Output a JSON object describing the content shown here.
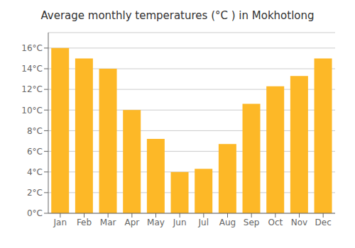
{
  "chart_data": {
    "type": "bar",
    "title": "Average monthly temperatures (°C ) in Mokhotlong",
    "categories": [
      "Jan",
      "Feb",
      "Mar",
      "Apr",
      "May",
      "Jun",
      "Jul",
      "Aug",
      "Sep",
      "Oct",
      "Nov",
      "Dec"
    ],
    "values": [
      16.0,
      15.0,
      14.0,
      10.0,
      7.2,
      4.0,
      4.3,
      6.7,
      10.6,
      12.3,
      13.3,
      15.0
    ],
    "color": "#FDB827",
    "ylim": [
      0,
      17.5
    ],
    "yticks": [
      {
        "value": 0,
        "label": "0°C"
      },
      {
        "value": 2,
        "label": "2°C"
      },
      {
        "value": 4,
        "label": "4°C"
      },
      {
        "value": 6,
        "label": "6°C"
      },
      {
        "value": 8,
        "label": "8°C"
      },
      {
        "value": 10,
        "label": "10°C"
      },
      {
        "value": 12,
        "label": "12°C"
      },
      {
        "value": 14,
        "label": "14°C"
      },
      {
        "value": 16,
        "label": "16°C"
      }
    ],
    "grid": true
  }
}
